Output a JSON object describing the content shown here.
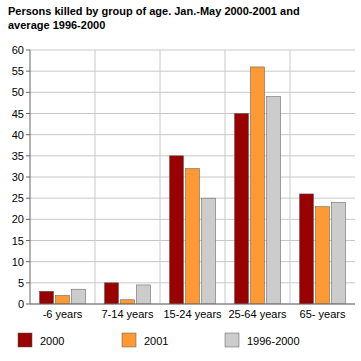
{
  "chart_data": {
    "type": "bar",
    "title": "Persons killed by group of age. Jan.-May 2000-2001 and average 1996-2000",
    "categories": [
      "-6 years",
      "7-14 years",
      "15-24 years",
      "25-64 years",
      "65- years"
    ],
    "series": [
      {
        "name": "2000",
        "color": "#990000",
        "values": [
          3,
          5,
          35,
          45,
          26
        ]
      },
      {
        "name": "2001",
        "color": "#ff9933",
        "values": [
          2,
          1,
          32,
          56,
          23
        ]
      },
      {
        "name": "1996-2000",
        "color": "#cccccc",
        "values": [
          3.5,
          4.5,
          25,
          49,
          24
        ]
      }
    ],
    "ylim": [
      0,
      60
    ],
    "yticks": [
      0,
      5,
      10,
      15,
      20,
      25,
      30,
      35,
      40,
      45,
      50,
      55,
      60
    ],
    "grid": true,
    "legend": "bottom"
  }
}
